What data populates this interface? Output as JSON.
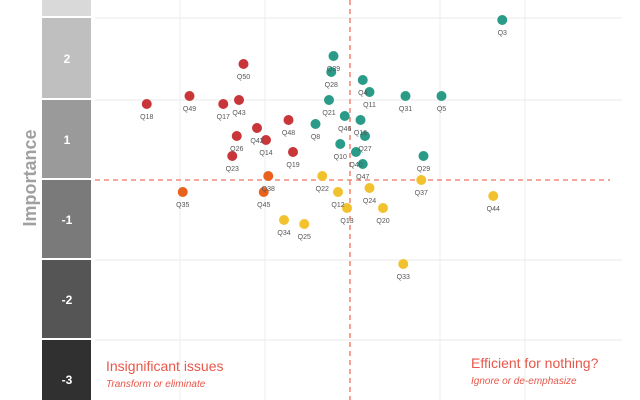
{
  "chart_data": {
    "type": "scatter",
    "ylabel": "Importance",
    "y_bands": [
      "",
      "2",
      "1",
      "-1",
      "-2",
      "-3"
    ],
    "xlim": [
      0,
      10
    ],
    "ylim": [
      -3,
      3
    ],
    "quadrants": {
      "bottom_left": {
        "title": "Insignificant issues",
        "subtitle": "Transform or eliminate"
      },
      "bottom_right": {
        "title": "Efficient for nothing?",
        "subtitle": "Ignore or de-emphasize"
      }
    },
    "colors": {
      "red": "#c8363a",
      "orange": "#e8621e",
      "teal": "#2a9b88",
      "yellow": "#f2c12e",
      "divider": "#f08a7a",
      "accent": "#e8574a"
    },
    "points": [
      {
        "label": "Q3",
        "x": 9.05,
        "y": 2.0,
        "color": "teal"
      },
      {
        "label": "Q5",
        "x": 7.7,
        "y": 1.05,
        "color": "teal"
      },
      {
        "label": "Q31",
        "x": 6.9,
        "y": 1.05,
        "color": "teal"
      },
      {
        "label": "Q29",
        "x": 7.3,
        "y": 0.3,
        "color": "teal"
      },
      {
        "label": "Q4",
        "x": 5.95,
        "y": 1.25,
        "color": "teal"
      },
      {
        "label": "Q39",
        "x": 5.3,
        "y": 1.55,
        "color": "teal"
      },
      {
        "label": "Q28",
        "x": 5.25,
        "y": 1.35,
        "color": "teal"
      },
      {
        "label": "Q21",
        "x": 5.2,
        "y": 1.0,
        "color": "teal"
      },
      {
        "label": "Q46",
        "x": 5.55,
        "y": 0.8,
        "color": "teal"
      },
      {
        "label": "Q10",
        "x": 5.45,
        "y": 0.45,
        "color": "teal"
      },
      {
        "label": "Q40",
        "x": 5.8,
        "y": 0.35,
        "color": "teal"
      },
      {
        "label": "Q16",
        "x": 5.9,
        "y": 0.75,
        "color": "teal"
      },
      {
        "label": "Q27",
        "x": 6.0,
        "y": 0.55,
        "color": "teal"
      },
      {
        "label": "Q47",
        "x": 5.95,
        "y": 0.2,
        "color": "teal"
      },
      {
        "label": "Q8",
        "x": 4.9,
        "y": 0.7,
        "color": "teal"
      },
      {
        "label": "Q11",
        "x": 6.1,
        "y": 1.1,
        "color": "teal"
      },
      {
        "label": "Q50",
        "x": 3.3,
        "y": 1.45,
        "color": "red"
      },
      {
        "label": "Q43",
        "x": 3.2,
        "y": 1.0,
        "color": "red"
      },
      {
        "label": "Q49",
        "x": 2.1,
        "y": 1.05,
        "color": "red"
      },
      {
        "label": "Q18",
        "x": 1.15,
        "y": 0.95,
        "color": "red"
      },
      {
        "label": "Q17",
        "x": 2.85,
        "y": 0.95,
        "color": "red"
      },
      {
        "label": "Q42",
        "x": 3.6,
        "y": 0.65,
        "color": "red"
      },
      {
        "label": "Q48",
        "x": 4.3,
        "y": 0.75,
        "color": "red"
      },
      {
        "label": "Q26",
        "x": 3.15,
        "y": 0.55,
        "color": "red"
      },
      {
        "label": "Q23",
        "x": 3.05,
        "y": 0.3,
        "color": "red"
      },
      {
        "label": "Q14",
        "x": 3.8,
        "y": 0.5,
        "color": "red"
      },
      {
        "label": "Q19",
        "x": 4.4,
        "y": 0.35,
        "color": "red"
      },
      {
        "label": "Q35",
        "x": 1.95,
        "y": -0.15,
        "color": "orange"
      },
      {
        "label": "Q38",
        "x": 3.85,
        "y": 0.05,
        "color": "orange"
      },
      {
        "label": "Q45",
        "x": 3.75,
        "y": -0.15,
        "color": "orange"
      },
      {
        "label": "Q22",
        "x": 5.05,
        "y": 0.05,
        "color": "yellow"
      },
      {
        "label": "Q12",
        "x": 5.4,
        "y": -0.15,
        "color": "yellow"
      },
      {
        "label": "Q24",
        "x": 6.1,
        "y": -0.1,
        "color": "yellow"
      },
      {
        "label": "Q37",
        "x": 7.25,
        "y": 0.0,
        "color": "yellow"
      },
      {
        "label": "Q44",
        "x": 8.85,
        "y": -0.2,
        "color": "yellow"
      },
      {
        "label": "Q13",
        "x": 5.6,
        "y": -0.35,
        "color": "yellow"
      },
      {
        "label": "Q20",
        "x": 6.4,
        "y": -0.35,
        "color": "yellow"
      },
      {
        "label": "Q34",
        "x": 4.2,
        "y": -0.5,
        "color": "yellow"
      },
      {
        "label": "Q25",
        "x": 4.65,
        "y": -0.55,
        "color": "yellow"
      },
      {
        "label": "Q33",
        "x": 6.85,
        "y": -1.05,
        "color": "yellow"
      }
    ]
  }
}
